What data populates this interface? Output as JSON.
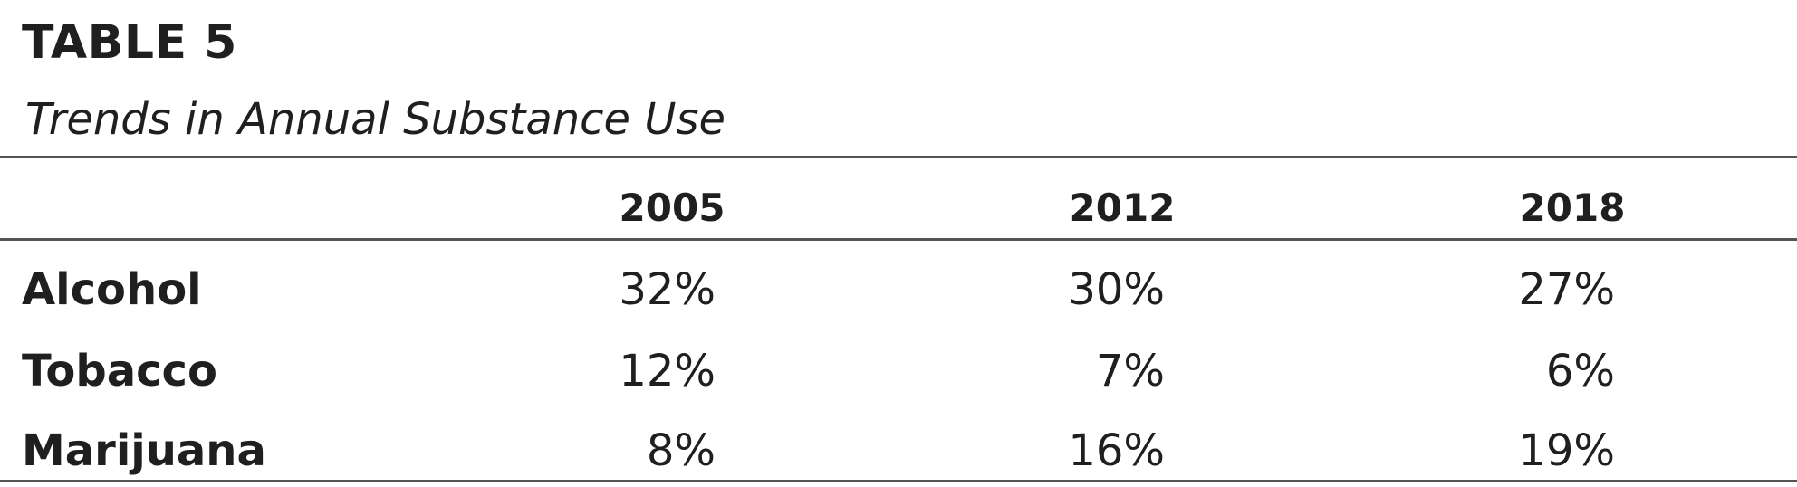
{
  "table": {
    "label": "TABLE 5",
    "title": "Trends in Annual Substance Use",
    "columns": [
      "2005",
      "2012",
      "2018"
    ],
    "rows": [
      {
        "label": "Alcohol",
        "values": [
          "32%",
          "30%",
          "27%"
        ]
      },
      {
        "label": "Tobacco",
        "values": [
          "12%",
          "7%",
          "6%"
        ]
      },
      {
        "label": "Marijuana",
        "values": [
          "8%",
          "16%",
          "19%"
        ]
      }
    ]
  }
}
